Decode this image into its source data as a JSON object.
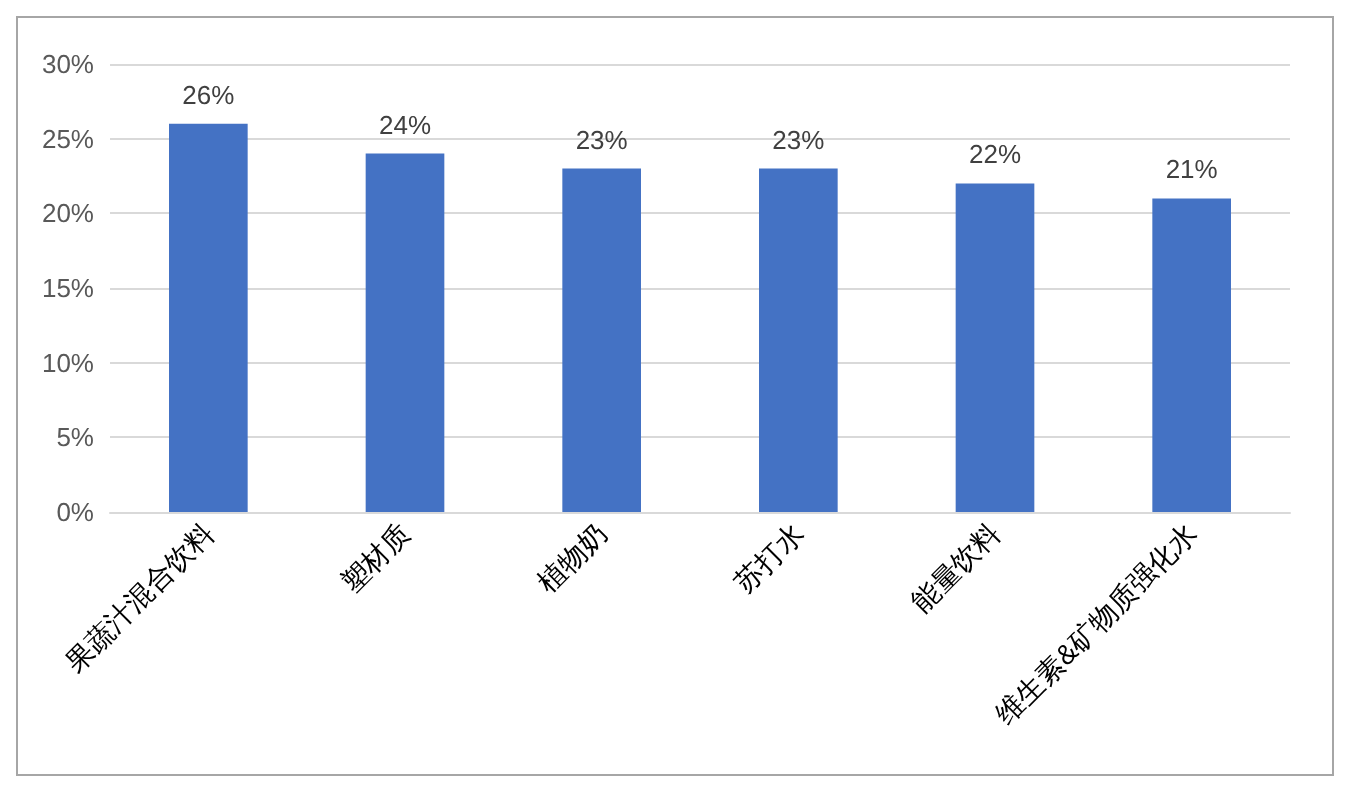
{
  "chart_data": {
    "type": "bar",
    "categories": [
      "果蔬汁混合饮料",
      "塑材质",
      "植物奶",
      "苏打水",
      "能量饮料",
      "维生素&矿物质强化水"
    ],
    "values": [
      26,
      24,
      23,
      23,
      22,
      21
    ],
    "value_labels": [
      "26%",
      "24%",
      "23%",
      "23%",
      "22%",
      "21%"
    ],
    "color": "#4472c4",
    "ylim": [
      0,
      30
    ],
    "yticks": [
      {
        "value": 0,
        "label": "0%"
      },
      {
        "value": 5,
        "label": "5%"
      },
      {
        "value": 10,
        "label": "10%"
      },
      {
        "value": 15,
        "label": "15%"
      },
      {
        "value": 20,
        "label": "20%"
      },
      {
        "value": 25,
        "label": "25%"
      },
      {
        "value": 30,
        "label": "30%"
      }
    ],
    "grid": "y"
  }
}
